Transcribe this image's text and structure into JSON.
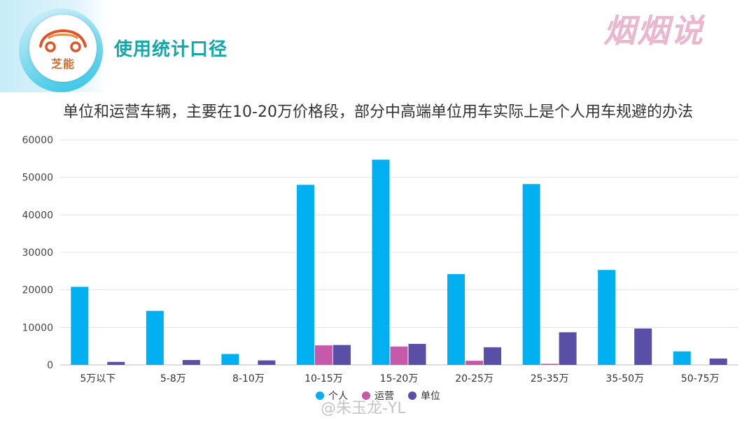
{
  "header": {
    "logo_text": "芝能",
    "section_title": "使用统计口径",
    "brand": "烟烟说"
  },
  "subtitle": "单位和运营车辆，主要在10-20万价格段，部分中高端单位用车实际上是个人用车规避的办法",
  "watermark": "@朱玉龙-YL",
  "colors": {
    "personal": "#00b0f0",
    "operation": "#c75aa8",
    "unit": "#5a4fa6",
    "grid": "#e3e3e3",
    "section_title": "#11a8a8",
    "brand": "#eab7cf"
  },
  "chart_data": {
    "type": "bar",
    "title": "",
    "xlabel": "",
    "ylabel": "",
    "ylim": [
      0,
      60000
    ],
    "yticks": [
      0,
      10000,
      20000,
      30000,
      40000,
      50000,
      60000
    ],
    "grid": true,
    "legend_position": "bottom",
    "categories": [
      "5万以下",
      "5-8万",
      "8-10万",
      "10-15万",
      "15-20万",
      "20-25万",
      "25-35万",
      "35-50万",
      "50-75万"
    ],
    "series": [
      {
        "name": "个人",
        "color": "#00b0f0",
        "values": [
          20800,
          14400,
          2900,
          48000,
          54700,
          24200,
          48200,
          25300,
          3600
        ]
      },
      {
        "name": "运营",
        "color": "#c75aa8",
        "values": [
          0,
          0,
          0,
          5200,
          4900,
          1100,
          300,
          0,
          0
        ]
      },
      {
        "name": "单位",
        "color": "#5a4fa6",
        "values": [
          800,
          1300,
          1200,
          5300,
          5600,
          4700,
          8700,
          9700,
          1700
        ]
      }
    ]
  }
}
